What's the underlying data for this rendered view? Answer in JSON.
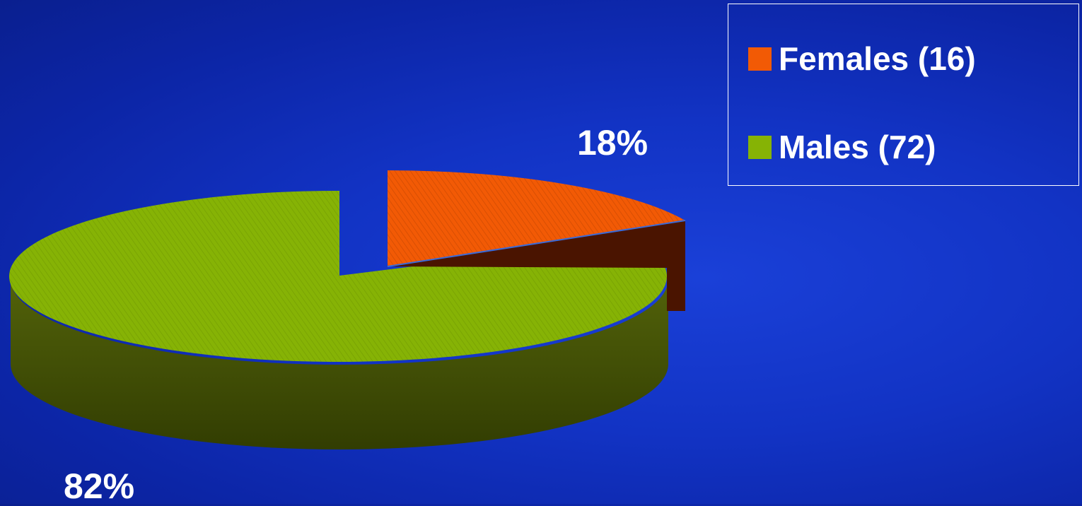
{
  "chart_data": {
    "type": "pie",
    "title": "",
    "slices": [
      {
        "name": "Females (16)",
        "value": 16,
        "percent": 18,
        "percent_label": "18%",
        "color": "#f25a05",
        "side_color": "#4a1400"
      },
      {
        "name": "Males (72)",
        "value": 72,
        "percent": 82,
        "percent_label": "82%",
        "color": "#86b305",
        "side_color": "#3e4a04"
      }
    ],
    "legend_position": "top-right",
    "style": "3d-exploded"
  }
}
